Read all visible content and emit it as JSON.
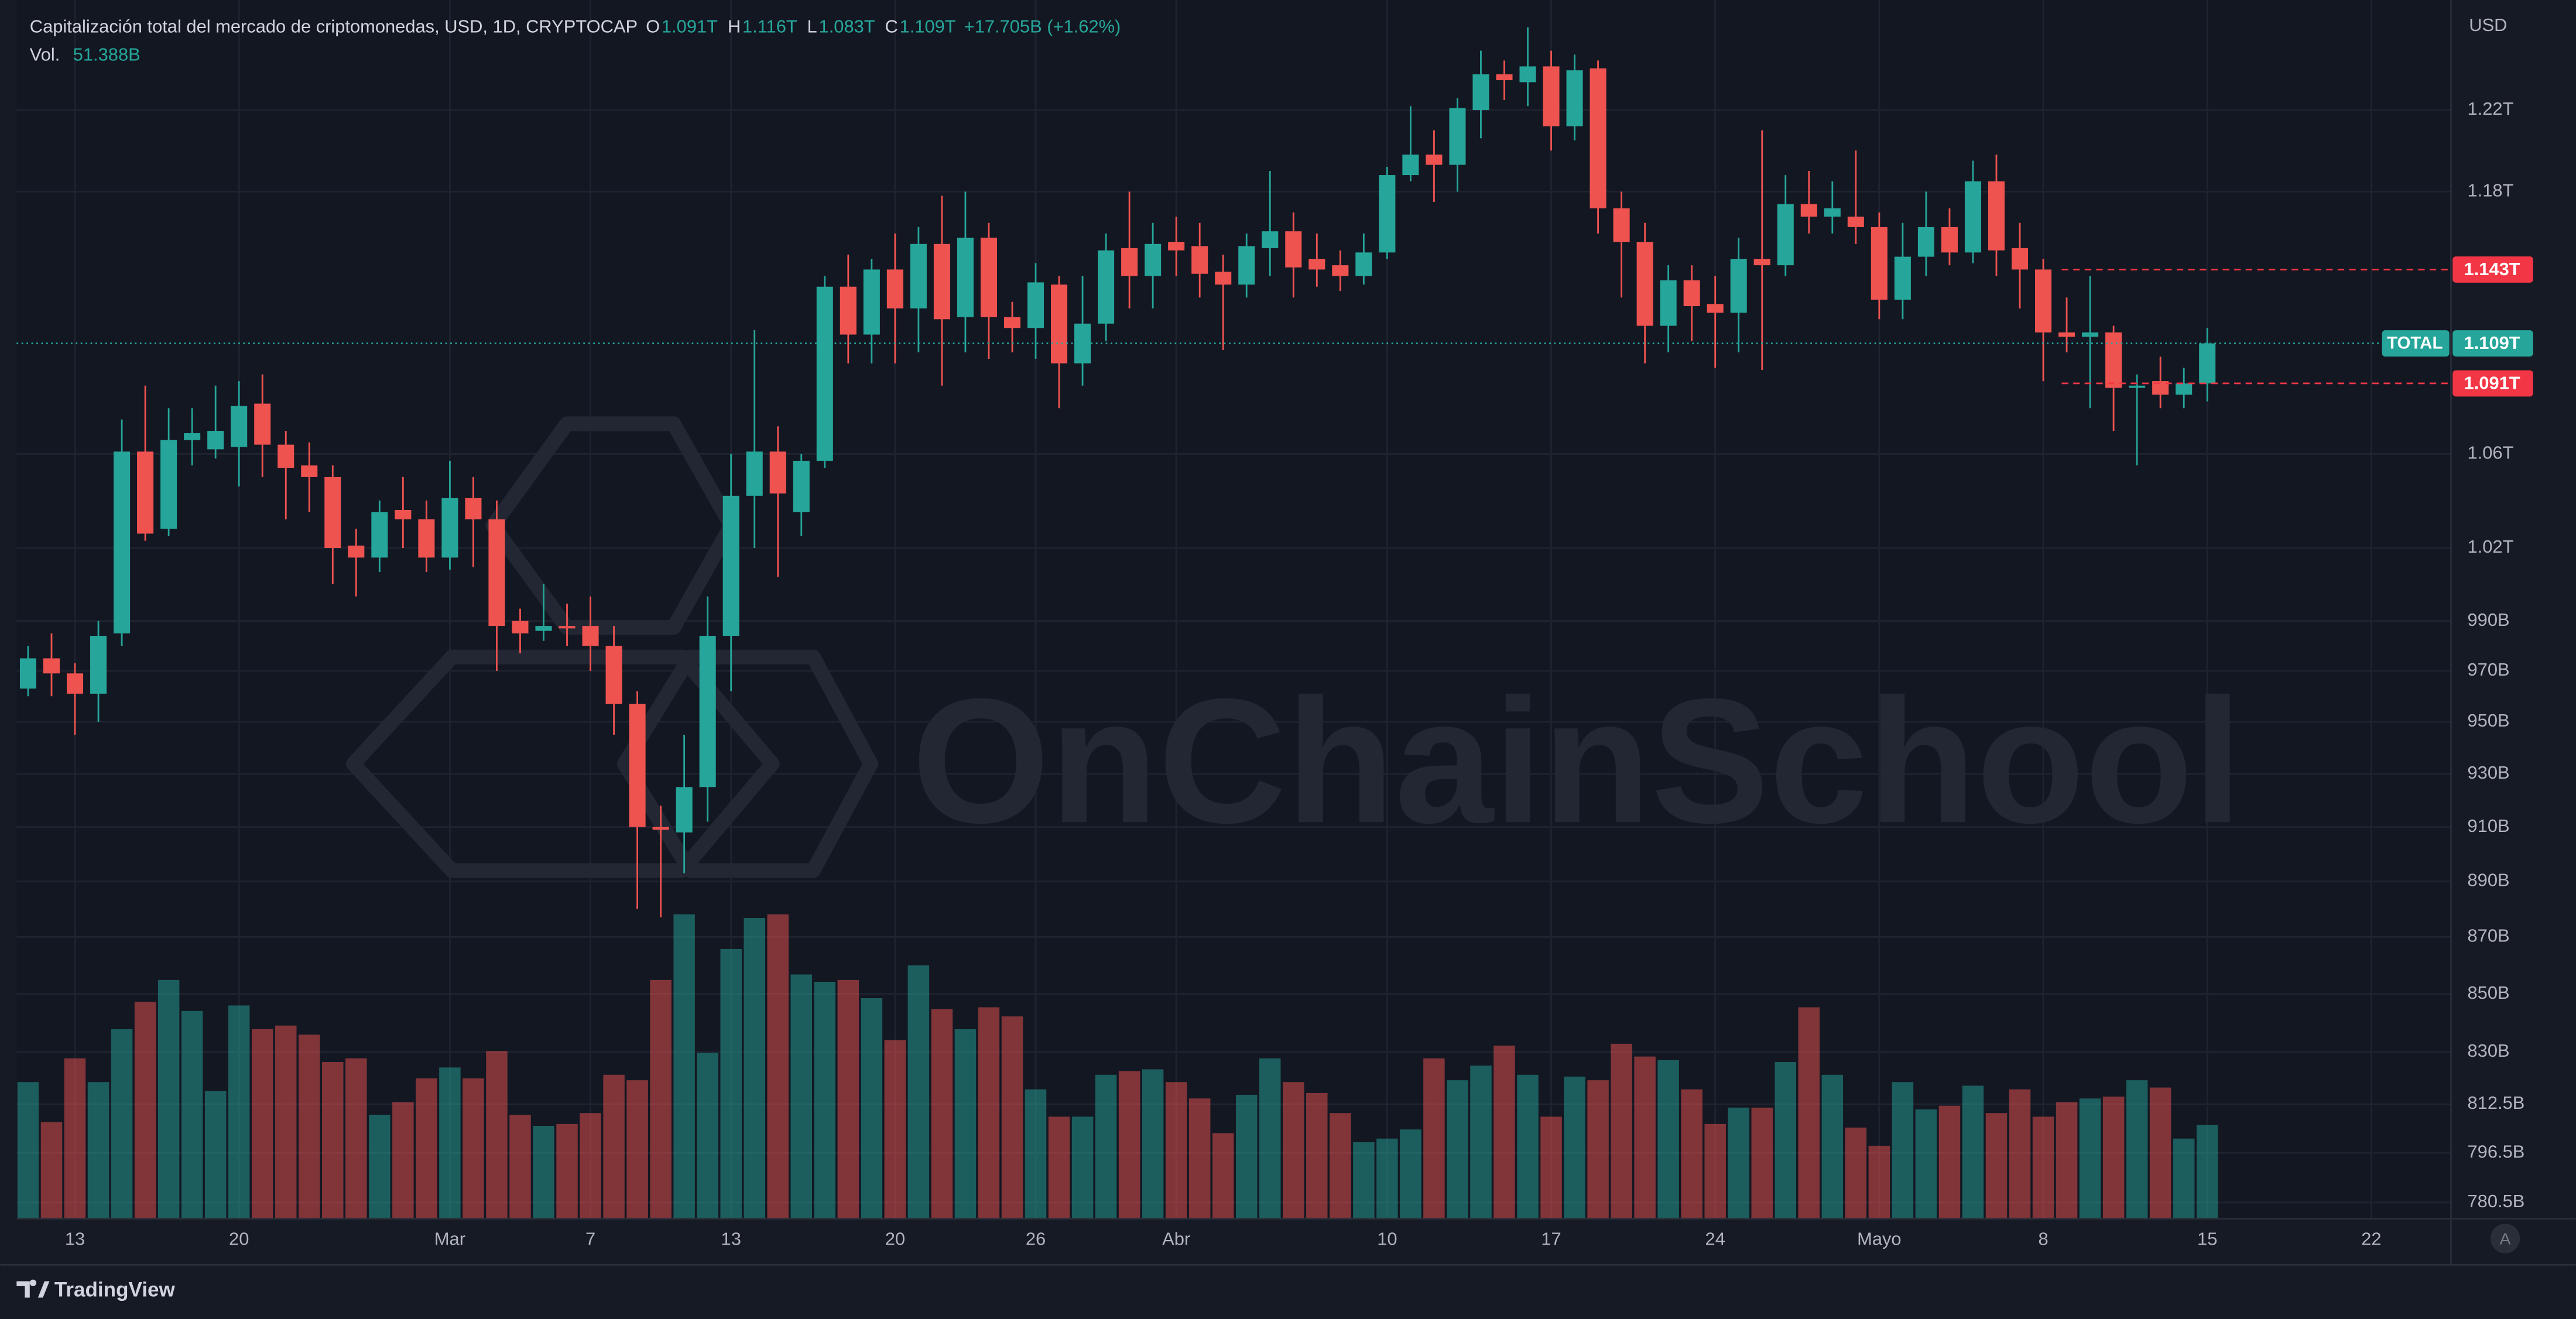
{
  "chart_data": {
    "type": "candlestick",
    "title": "Capitalización total del mercado de criptomonedas, USD, 1D, CRYPTOCAP",
    "ohlc_labels": [
      "O",
      "H",
      "L",
      "C"
    ],
    "legend_values": [
      "1.091T",
      "1.116T",
      "1.083T",
      "1.109T",
      "+17.705B (+1.62%)"
    ],
    "volume_label": "Vol.",
    "volume_value_label": "51.388B",
    "currency": "USD",
    "symbol_tag": "TOTAL",
    "watermark": "OnChainSchool",
    "footer_brand": "TradingView",
    "auto_button": "A",
    "up_color": "#26a69a",
    "down_color": "#ef5350",
    "log_scale": true,
    "grid": true,
    "ylim": [
      775300000000.0,
      1271900000000.0
    ],
    "yticks": [
      {
        "value": 1220000000000.0,
        "label": "1.22T"
      },
      {
        "value": 1180000000000.0,
        "label": "1.18T"
      },
      {
        "value": 1060000000000.0,
        "label": "1.06T"
      },
      {
        "value": 1020000000000.0,
        "label": "1.02T"
      },
      {
        "value": 990000000000.0,
        "label": "990B"
      },
      {
        "value": 970000000000.0,
        "label": "970B"
      },
      {
        "value": 950000000000.0,
        "label": "950B"
      },
      {
        "value": 930000000000.0,
        "label": "930B"
      },
      {
        "value": 910000000000.0,
        "label": "910B"
      },
      {
        "value": 890000000000.0,
        "label": "890B"
      },
      {
        "value": 870000000000.0,
        "label": "870B"
      },
      {
        "value": 850000000000.0,
        "label": "850B"
      },
      {
        "value": 830000000000.0,
        "label": "830B"
      },
      {
        "value": 812500000000.0,
        "label": "812.5B"
      },
      {
        "value": 796500000000.0,
        "label": "796.5B"
      },
      {
        "value": 780500000000.0,
        "label": "780.5B"
      }
    ],
    "xlim": [
      -0.49,
      103.4
    ],
    "xticks": [
      {
        "value": 2,
        "label": "13"
      },
      {
        "value": 9,
        "label": "20"
      },
      {
        "value": 18,
        "label": "Mar"
      },
      {
        "value": 24,
        "label": "7"
      },
      {
        "value": 30,
        "label": "13"
      },
      {
        "value": 37,
        "label": "20"
      },
      {
        "value": 43,
        "label": "26"
      },
      {
        "value": 49,
        "label": "Abr"
      },
      {
        "value": 58,
        "label": "10"
      },
      {
        "value": 65,
        "label": "17"
      },
      {
        "value": 72,
        "label": "24"
      },
      {
        "value": 79,
        "label": "Mayo"
      },
      {
        "value": 86,
        "label": "8"
      },
      {
        "value": 93,
        "label": "15"
      },
      {
        "value": 100,
        "label": "22"
      }
    ],
    "price_markers": [
      {
        "value": 1143000000000.0,
        "label": "1.143T",
        "color": "#f23645"
      },
      {
        "value": 1109000000000.0,
        "label": "1.109T",
        "color": "#26a69a"
      },
      {
        "value": 1091000000000.0,
        "label": "1.091T",
        "color": "#f23645"
      }
    ],
    "open": [
      963000000000.0,
      975000000000.0,
      969000000000.0,
      961000000000.0,
      985000000000.0,
      1061000000000.0,
      1028000000000.0,
      1066000000000.0,
      1062000000000.0,
      1063000000000.0,
      1082000000000.0,
      1064000000000.0,
      1055000000000.0,
      1050000000000.0,
      1021000000000.0,
      1016000000000.0,
      1036000000000.0,
      1032000000000.0,
      1016000000000.0,
      1041000000000.0,
      1032000000000.0,
      990000000000.0,
      986000000000.0,
      988000000000.0,
      988000000000.0,
      980000000000.0,
      957000000000.0,
      910000000000.0,
      908000000000.0,
      925000000000.0,
      984000000000.0,
      1042000000000.0,
      1061000000000.0,
      1035000000000.0,
      1057000000000.0,
      1135000000000.0,
      1113000000000.0,
      1143000000000.0,
      1125000000000.0,
      1155000000000.0,
      1121000000000.0,
      1158000000000.0,
      1121000000000.0,
      1116000000000.0,
      1136000000000.0,
      1100000000000.0,
      1118000000000.0,
      1153000000000.0,
      1140000000000.0,
      1156000000000.0,
      1154000000000.0,
      1142000000000.0,
      1136000000000.0,
      1153000000000.0,
      1161000000000.0,
      1148000000000.0,
      1145000000000.0,
      1140000000000.0,
      1151000000000.0,
      1188000000000.0,
      1198000000000.0,
      1193000000000.0,
      1220000000000.0,
      1238000000000.0,
      1234000000000.0,
      1242000000000.0,
      1212000000000.0,
      1241000000000.0,
      1172000000000.0,
      1156000000000.0,
      1117000000000.0,
      1138000000000.0,
      1127000000000.0,
      1123000000000.0,
      1148000000000.0,
      1145000000000.0,
      1174000000000.0,
      1168000000000.0,
      1168000000000.0,
      1163000000000.0,
      1129000000000.0,
      1149000000000.0,
      1163000000000.0,
      1151000000000.0,
      1185000000000.0,
      1153000000000.0,
      1143000000000.0,
      1114000000000.0,
      1112000000000.0,
      1114000000000.0,
      1089000000000.0,
      1092000000000.0,
      1086000000000.0,
      1091000000000.0
    ],
    "high": [
      980000000000.0,
      985000000000.0,
      973000000000.0,
      990000000000.0,
      1075000000000.0,
      1090000000000.0,
      1080000000000.0,
      1080000000000.0,
      1090000000000.0,
      1092000000000.0,
      1095000000000.0,
      1070000000000.0,
      1065000000000.0,
      1055000000000.0,
      1028000000000.0,
      1040000000000.0,
      1050000000000.0,
      1040000000000.0,
      1057000000000.0,
      1050000000000.0,
      1040000000000.0,
      995000000000.0,
      1005000000000.0,
      997000000000.0,
      1000000000000.0,
      988000000000.0,
      962000000000.0,
      918000000000.0,
      945000000000.0,
      1000000000000.0,
      1060000000000.0,
      1115000000000.0,
      1072000000000.0,
      1060000000000.0,
      1140000000000.0,
      1150000000000.0,
      1148000000000.0,
      1160000000000.0,
      1163000000000.0,
      1178000000000.0,
      1180000000000.0,
      1165000000000.0,
      1128000000000.0,
      1146000000000.0,
      1140000000000.0,
      1140000000000.0,
      1160000000000.0,
      1180000000000.0,
      1165000000000.0,
      1168000000000.0,
      1165000000000.0,
      1150000000000.0,
      1160000000000.0,
      1190000000000.0,
      1170000000000.0,
      1160000000000.0,
      1152000000000.0,
      1160000000000.0,
      1192000000000.0,
      1222000000000.0,
      1210000000000.0,
      1226000000000.0,
      1250000000000.0,
      1245000000000.0,
      1262000000000.0,
      1250000000000.0,
      1248000000000.0,
      1245000000000.0,
      1180000000000.0,
      1165000000000.0,
      1145000000000.0,
      1145000000000.0,
      1140000000000.0,
      1158000000000.0,
      1210000000000.0,
      1188000000000.0,
      1190000000000.0,
      1185000000000.0,
      1200000000000.0,
      1170000000000.0,
      1165000000000.0,
      1180000000000.0,
      1172000000000.0,
      1195000000000.0,
      1198000000000.0,
      1165000000000.0,
      1148000000000.0,
      1130000000000.0,
      1140000000000.0,
      1117000000000.0,
      1095000000000.0,
      1103000000000.0,
      1098000000000.0,
      1116000000000.0
    ],
    "low": [
      960000000000.0,
      960000000000.0,
      945000000000.0,
      950000000000.0,
      980000000000.0,
      1023000000000.0,
      1025000000000.0,
      1055000000000.0,
      1058000000000.0,
      1046000000000.0,
      1050000000000.0,
      1032000000000.0,
      1035000000000.0,
      1005000000000.0,
      1000000000000.0,
      1010000000000.0,
      1020000000000.0,
      1010000000000.0,
      1011000000000.0,
      1012000000000.0,
      970000000000.0,
      977000000000.0,
      982000000000.0,
      980000000000.0,
      970000000000.0,
      945000000000.0,
      880000000000.0,
      877000000000.0,
      893000000000.0,
      912000000000.0,
      962000000000.0,
      1020000000000.0,
      1008000000000.0,
      1025000000000.0,
      1054000000000.0,
      1100000000000.0,
      1100000000000.0,
      1100000000000.0,
      1105000000000.0,
      1090000000000.0,
      1105000000000.0,
      1102000000000.0,
      1105000000000.0,
      1102000000000.0,
      1080000000000.0,
      1090000000000.0,
      1110000000000.0,
      1125000000000.0,
      1125000000000.0,
      1140000000000.0,
      1130000000000.0,
      1106000000000.0,
      1130000000000.0,
      1140000000000.0,
      1130000000000.0,
      1135000000000.0,
      1133000000000.0,
      1136000000000.0,
      1148000000000.0,
      1185000000000.0,
      1175000000000.0,
      1180000000000.0,
      1206000000000.0,
      1225000000000.0,
      1222000000000.0,
      1200000000000.0,
      1205000000000.0,
      1160000000000.0,
      1130000000000.0,
      1100000000000.0,
      1105000000000.0,
      1110000000000.0,
      1098000000000.0,
      1105000000000.0,
      1097000000000.0,
      1140000000000.0,
      1160000000000.0,
      1160000000000.0,
      1155000000000.0,
      1120000000000.0,
      1120000000000.0,
      1140000000000.0,
      1145000000000.0,
      1146000000000.0,
      1140000000000.0,
      1125000000000.0,
      1092000000000.0,
      1105000000000.0,
      1080000000000.0,
      1070000000000.0,
      1055000000000.0,
      1080000000000.0,
      1080000000000.0,
      1083000000000.0
    ],
    "close": [
      975000000000.0,
      969000000000.0,
      961000000000.0,
      984000000000.0,
      1061000000000.0,
      1026000000000.0,
      1066000000000.0,
      1069000000000.0,
      1070000000000.0,
      1081000000000.0,
      1064000000000.0,
      1054000000000.0,
      1050000000000.0,
      1020000000000.0,
      1016000000000.0,
      1035000000000.0,
      1032000000000.0,
      1016000000000.0,
      1041000000000.0,
      1032000000000.0,
      988000000000.0,
      985000000000.0,
      988000000000.0,
      987000000000.0,
      980000000000.0,
      957000000000.0,
      910000000000.0,
      909000000000.0,
      925000000000.0,
      984000000000.0,
      1042000000000.0,
      1061000000000.0,
      1043000000000.0,
      1057000000000.0,
      1135000000000.0,
      1113000000000.0,
      1143000000000.0,
      1125000000000.0,
      1155000000000.0,
      1120000000000.0,
      1158000000000.0,
      1121000000000.0,
      1116000000000.0,
      1137000000000.0,
      1100000000000.0,
      1118000000000.0,
      1152000000000.0,
      1140000000000.0,
      1155000000000.0,
      1152000000000.0,
      1141000000000.0,
      1136000000000.0,
      1154000000000.0,
      1161000000000.0,
      1144000000000.0,
      1143000000000.0,
      1140000000000.0,
      1151000000000.0,
      1188000000000.0,
      1198000000000.0,
      1193000000000.0,
      1221000000000.0,
      1238000000000.0,
      1235000000000.0,
      1242000000000.0,
      1212000000000.0,
      1240000000000.0,
      1172000000000.0,
      1156000000000.0,
      1117000000000.0,
      1138000000000.0,
      1126000000000.0,
      1123000000000.0,
      1148000000000.0,
      1145000000000.0,
      1174000000000.0,
      1168000000000.0,
      1172000000000.0,
      1163000000000.0,
      1129000000000.0,
      1149000000000.0,
      1163000000000.0,
      1151000000000.0,
      1185000000000.0,
      1152000000000.0,
      1143000000000.0,
      1114000000000.0,
      1112000000000.0,
      1114000000000.0,
      1089000000000.0,
      1090000000000.0,
      1086000000000.0,
      1091000000000.0,
      1109000000000.0
    ],
    "volume_lim": [
      0,
      200000000000.0
    ],
    "volume": [
      75000000000.0,
      53000000000.0,
      88000000000.0,
      75000000000.0,
      104000000000.0,
      119000000000.0,
      131000000000.0,
      114000000000.0,
      70000000000.0,
      117000000000.0,
      104000000000.0,
      106000000000.0,
      101000000000.0,
      86000000000.0,
      88000000000.0,
      57000000000.0,
      64000000000.0,
      77000000000.0,
      83000000000.0,
      77000000000.0,
      92000000000.0,
      57000000000.0,
      51000000000.0,
      52000000000.0,
      58000000000.0,
      79000000000.0,
      76000000000.0,
      131000000000.0,
      167000000000.0,
      91000000000.0,
      148000000000.0,
      165000000000.0,
      167000000000.0,
      134000000000.0,
      130000000000.0,
      131000000000.0,
      121000000000.0,
      98000000000.0,
      139000000000.0,
      115000000000.0,
      104000000000.0,
      116000000000.0,
      111000000000.0,
      71000000000.0,
      56000000000.0,
      56000000000.0,
      79000000000.0,
      81000000000.0,
      82000000000.0,
      75000000000.0,
      66000000000.0,
      47000000000.0,
      68000000000.0,
      88000000000.0,
      75000000000.0,
      69000000000.0,
      58000000000.0,
      42000000000.0,
      44000000000.0,
      49000000000.0,
      88000000000.0,
      76000000000.0,
      84000000000.0,
      95000000000.0,
      79000000000.0,
      56000000000.0,
      78000000000.0,
      76000000000.0,
      96000000000.0,
      89000000000.0,
      87000000000.0,
      71000000000.0,
      52000000000.0,
      61000000000.0,
      61000000000.0,
      86000000000.0,
      116000000000.0,
      79000000000.0,
      50000000000.0,
      40000000000.0,
      75000000000.0,
      60000000000.0,
      62000000000.0,
      73000000000.0,
      58000000000.0,
      71000000000.0,
      56000000000.0,
      64000000000.0,
      66000000000.0,
      67000000000.0,
      76000000000.0,
      72000000000.0,
      44000000000.0,
      51388000000.0
    ]
  }
}
